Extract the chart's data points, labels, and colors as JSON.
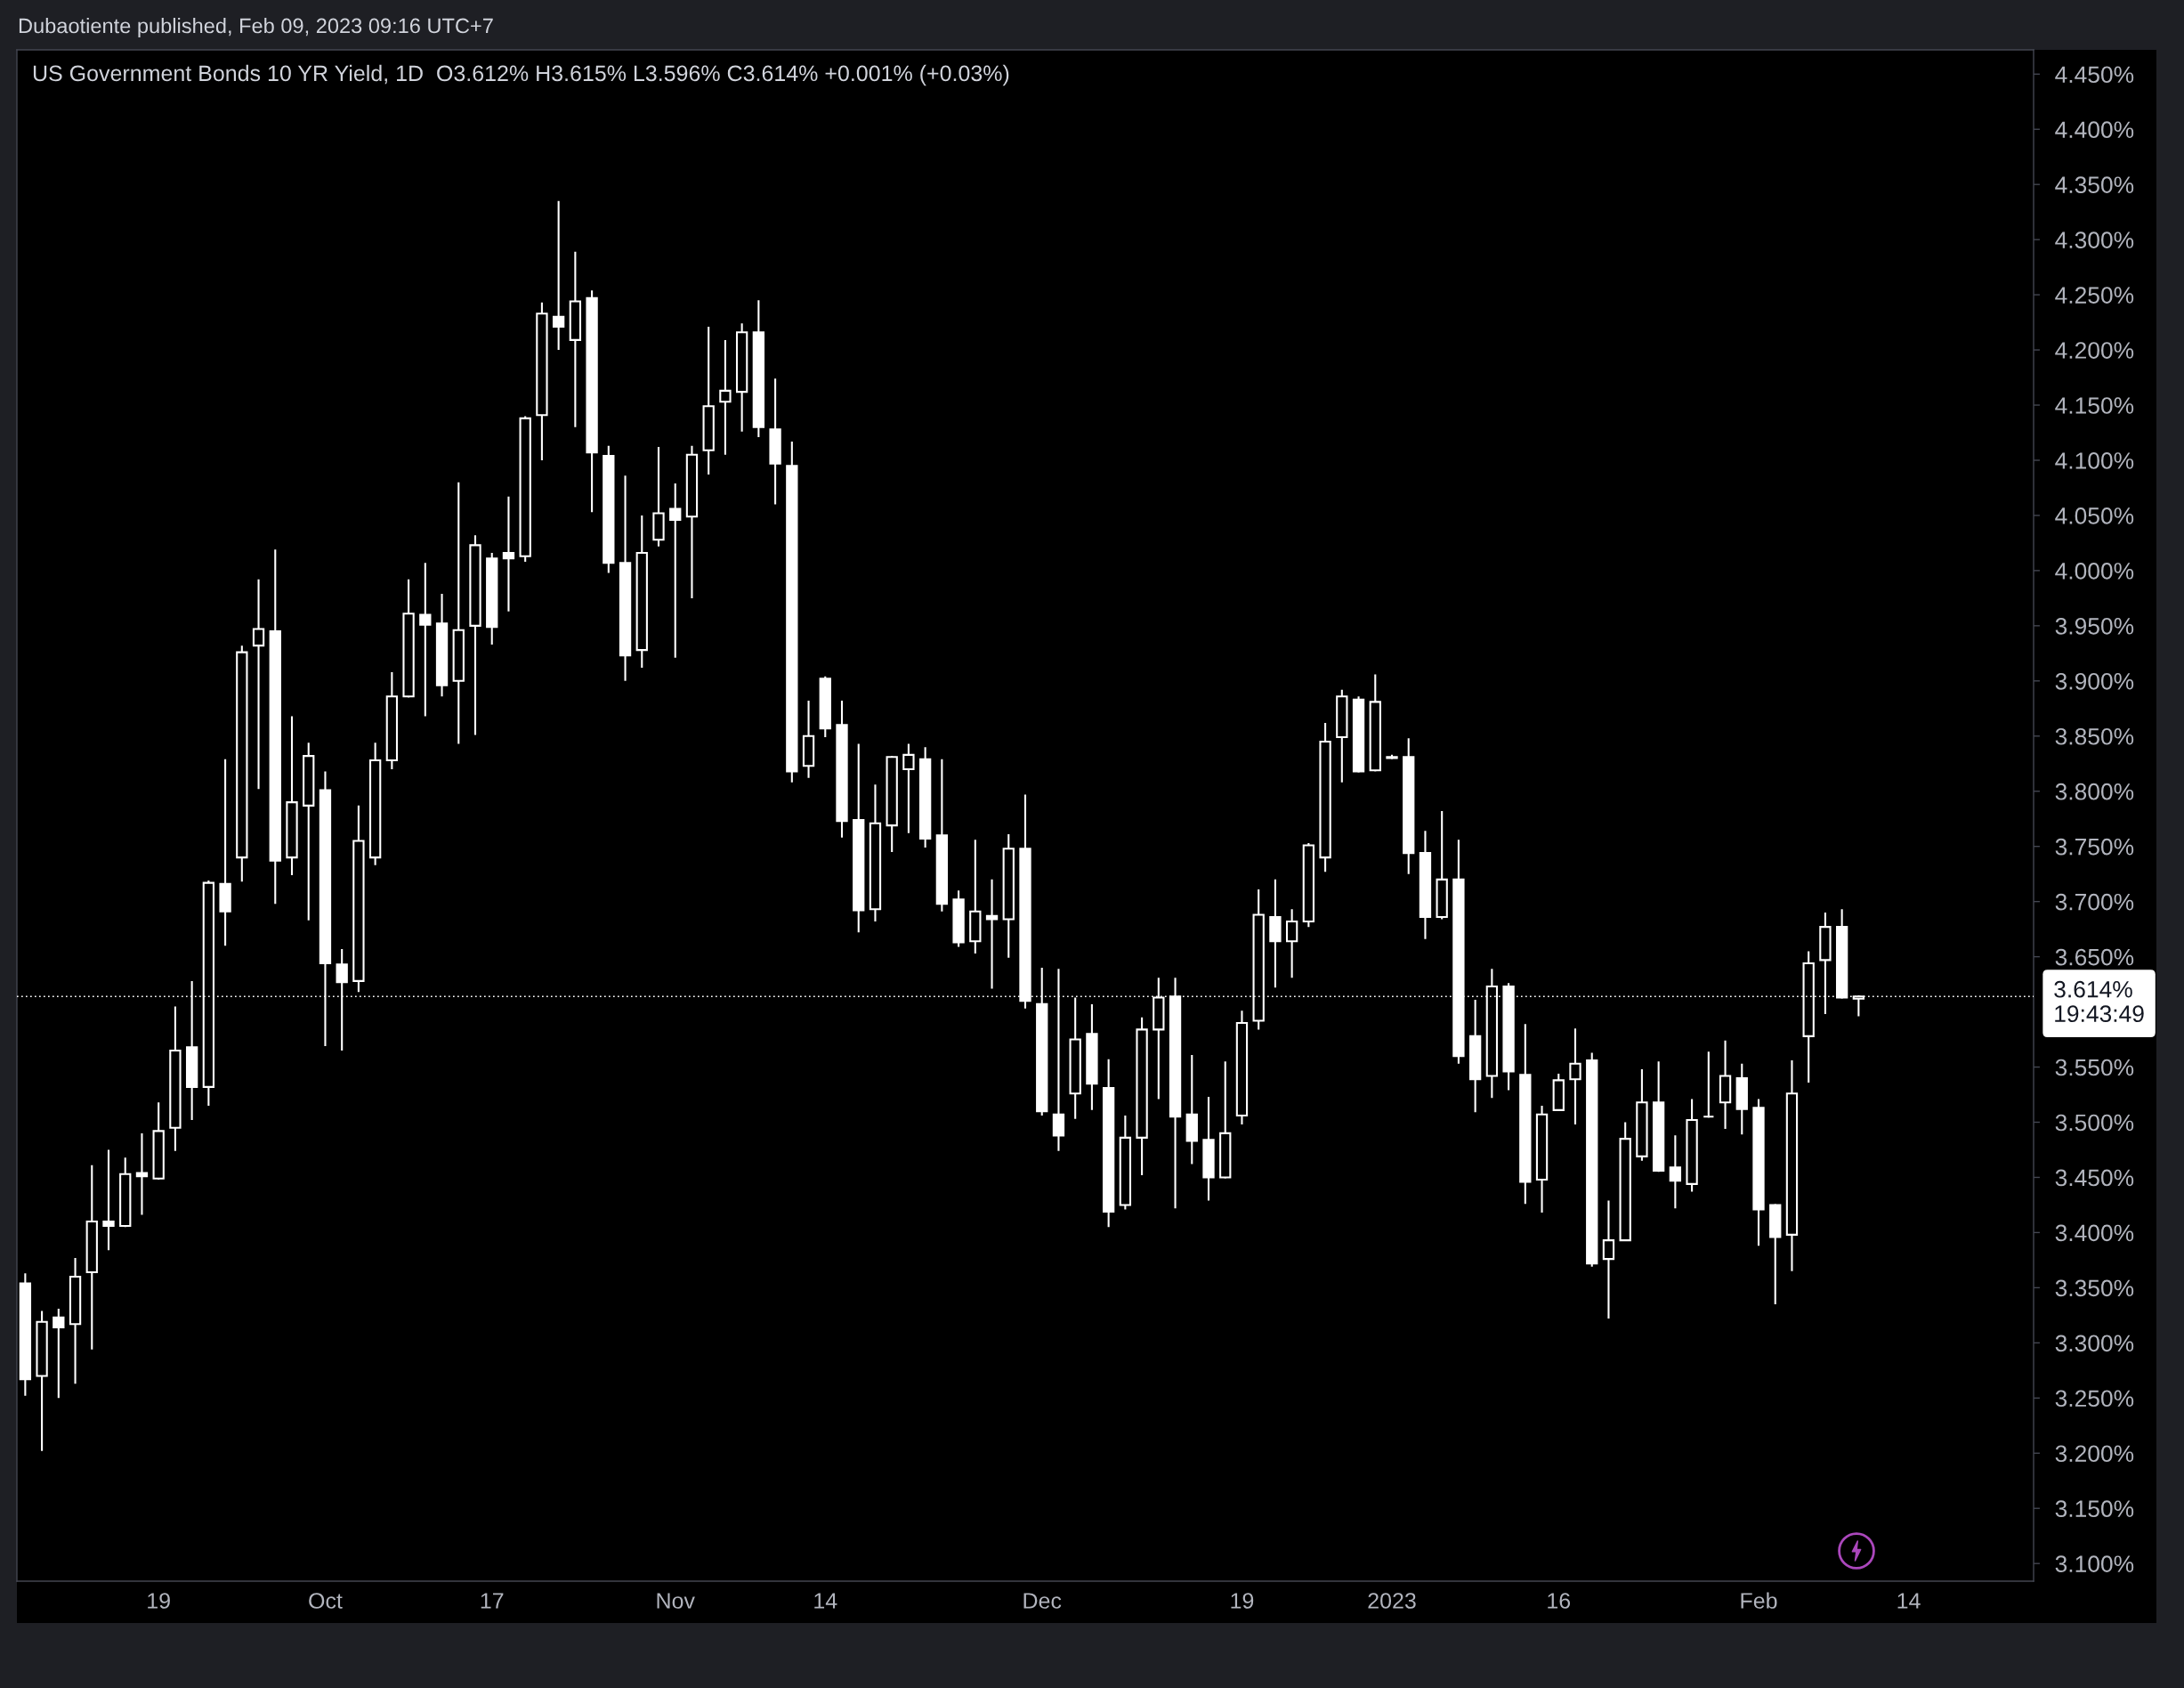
{
  "chart_data": {
    "type": "candlestick",
    "title": "US Government Bonds 10 YR Yield, 1D",
    "subtitle": "O3.612% H3.615% L3.596% C3.614% +0.001% (+0.03%)",
    "annotations": [
      "Dubaotiente published, Feb 09, 2023 09:16 UTC+7"
    ],
    "color": "#ffffff",
    "categories": [
      null,
      null,
      null,
      null,
      null,
      null,
      null,
      null,
      "19",
      null,
      null,
      null,
      null,
      null,
      null,
      null,
      null,
      null,
      "Oct",
      null,
      null,
      null,
      null,
      null,
      null,
      null,
      null,
      null,
      "17",
      null,
      null,
      null,
      null,
      null,
      null,
      null,
      null,
      null,
      null,
      "Nov",
      null,
      null,
      null,
      null,
      null,
      null,
      null,
      null,
      "14",
      null,
      null,
      null,
      null,
      null,
      null,
      null,
      null,
      null,
      null,
      null,
      null,
      "Dec",
      null,
      null,
      null,
      null,
      null,
      null,
      null,
      null,
      null,
      null,
      null,
      "19",
      null,
      null,
      null,
      null,
      null,
      null,
      null,
      null,
      "2023",
      null,
      null,
      null,
      null,
      null,
      null,
      null,
      null,
      null,
      "16",
      null,
      null,
      null,
      null,
      null,
      null,
      null,
      null,
      null,
      null,
      null,
      "Feb",
      null,
      null,
      null,
      null,
      null,
      null,
      null,
      null,
      "14",
      null,
      null,
      null,
      null,
      null,
      null,
      null
    ],
    "ohlc": [
      [
        3.354,
        3.363,
        3.252,
        3.267
      ],
      [
        3.27,
        3.329,
        3.202,
        3.319
      ],
      [
        3.323,
        3.331,
        3.25,
        3.314
      ],
      [
        3.317,
        3.377,
        3.263,
        3.36
      ],
      [
        3.364,
        3.461,
        3.294,
        3.41
      ],
      [
        3.41,
        3.475,
        3.384,
        3.406
      ],
      [
        3.406,
        3.468,
        3.405,
        3.453
      ],
      [
        3.454,
        3.49,
        3.416,
        3.451
      ],
      [
        3.449,
        3.518,
        3.448,
        3.492
      ],
      [
        3.495,
        3.605,
        3.474,
        3.565
      ],
      [
        3.568,
        3.628,
        3.502,
        3.532
      ],
      [
        3.532,
        3.719,
        3.515,
        3.717
      ],
      [
        3.716,
        3.829,
        3.66,
        3.691
      ],
      [
        3.74,
        3.932,
        3.718,
        3.926
      ],
      [
        3.932,
        3.992,
        3.802,
        3.947
      ],
      [
        3.945,
        4.019,
        3.698,
        3.737
      ],
      [
        3.74,
        3.868,
        3.724,
        3.79
      ],
      [
        3.787,
        3.844,
        3.683,
        3.832
      ],
      [
        3.801,
        3.818,
        3.569,
        3.644
      ],
      [
        3.643,
        3.657,
        3.565,
        3.627
      ],
      [
        3.628,
        3.787,
        3.618,
        3.755
      ],
      [
        3.74,
        3.844,
        3.733,
        3.828
      ],
      [
        3.828,
        3.908,
        3.82,
        3.886
      ],
      [
        3.886,
        3.992,
        3.885,
        3.961
      ],
      [
        3.96,
        4.007,
        3.868,
        3.951
      ],
      [
        3.952,
        3.979,
        3.886,
        3.896
      ],
      [
        3.9,
        4.08,
        3.843,
        3.946
      ],
      [
        3.95,
        4.032,
        3.851,
        4.023
      ],
      [
        4.011,
        4.016,
        3.933,
        3.949
      ],
      [
        4.016,
        4.067,
        3.963,
        4.011
      ],
      [
        4.013,
        4.14,
        4.008,
        4.138
      ],
      [
        4.141,
        4.243,
        4.1,
        4.233
      ],
      [
        4.23,
        4.335,
        4.2,
        4.221
      ],
      [
        4.209,
        4.289,
        4.13,
        4.244
      ],
      [
        4.247,
        4.254,
        4.053,
        4.107
      ],
      [
        4.104,
        4.113,
        3.998,
        4.007
      ],
      [
        4.007,
        4.086,
        3.9,
        3.923
      ],
      [
        3.928,
        4.05,
        3.912,
        4.016
      ],
      [
        4.028,
        4.112,
        4.022,
        4.052
      ],
      [
        4.056,
        4.079,
        3.921,
        4.046
      ],
      [
        4.049,
        4.113,
        3.975,
        4.105
      ],
      [
        4.109,
        4.221,
        4.087,
        4.149
      ],
      [
        4.153,
        4.209,
        4.105,
        4.163
      ],
      [
        4.162,
        4.224,
        4.126,
        4.216
      ],
      [
        4.216,
        4.245,
        4.121,
        4.13
      ],
      [
        4.128,
        4.174,
        4.06,
        4.097
      ],
      [
        4.095,
        4.117,
        3.808,
        3.818
      ],
      [
        3.823,
        3.882,
        3.812,
        3.85
      ],
      [
        3.902,
        3.904,
        3.849,
        3.857
      ],
      [
        3.86,
        3.882,
        3.758,
        3.773
      ],
      [
        3.774,
        3.843,
        3.672,
        3.692
      ],
      [
        3.693,
        3.806,
        3.682,
        3.771
      ],
      [
        3.769,
        3.832,
        3.745,
        3.831
      ],
      [
        3.82,
        3.843,
        3.762,
        3.833
      ],
      [
        3.829,
        3.84,
        3.749,
        3.757
      ],
      [
        3.76,
        3.829,
        3.691,
        3.698
      ],
      [
        3.702,
        3.71,
        3.659,
        3.663
      ],
      [
        3.664,
        3.756,
        3.653,
        3.691
      ],
      [
        3.687,
        3.72,
        3.621,
        3.684
      ],
      [
        3.684,
        3.761,
        3.649,
        3.748
      ],
      [
        3.748,
        3.797,
        3.603,
        3.61
      ],
      [
        3.607,
        3.64,
        3.506,
        3.51
      ],
      [
        3.507,
        3.639,
        3.474,
        3.488
      ],
      [
        3.526,
        3.613,
        3.503,
        3.575
      ],
      [
        3.58,
        3.607,
        3.511,
        3.535
      ],
      [
        3.531,
        3.557,
        3.405,
        3.419
      ],
      [
        3.425,
        3.506,
        3.421,
        3.486
      ],
      [
        3.486,
        3.595,
        3.452,
        3.584
      ],
      [
        3.584,
        3.631,
        3.521,
        3.613
      ],
      [
        3.614,
        3.631,
        3.422,
        3.505
      ],
      [
        3.507,
        3.561,
        3.462,
        3.483
      ],
      [
        3.484,
        3.523,
        3.429,
        3.45
      ],
      [
        3.45,
        3.555,
        3.449,
        3.49
      ],
      [
        3.506,
        3.601,
        3.498,
        3.59
      ],
      [
        3.592,
        3.711,
        3.584,
        3.688
      ],
      [
        3.686,
        3.72,
        3.622,
        3.664
      ],
      [
        3.664,
        3.693,
        3.631,
        3.682
      ],
      [
        3.682,
        3.753,
        3.677,
        3.751
      ],
      [
        3.74,
        3.862,
        3.727,
        3.845
      ],
      [
        3.849,
        3.892,
        3.808,
        3.886
      ],
      [
        3.883,
        3.886,
        3.817,
        3.818
      ],
      [
        3.819,
        3.906,
        3.818,
        3.881
      ],
      [
        3.831,
        3.833,
        3.829,
        3.83
      ],
      [
        3.831,
        3.848,
        3.725,
        3.744
      ],
      [
        3.744,
        3.764,
        3.666,
        3.686
      ],
      [
        3.686,
        3.782,
        3.684,
        3.72
      ],
      [
        3.72,
        3.756,
        3.553,
        3.56
      ],
      [
        3.578,
        3.611,
        3.509,
        3.539
      ],
      [
        3.542,
        3.639,
        3.522,
        3.623
      ],
      [
        3.623,
        3.626,
        3.529,
        3.546
      ],
      [
        3.543,
        3.589,
        3.426,
        3.446
      ],
      [
        3.448,
        3.515,
        3.418,
        3.507
      ],
      [
        3.511,
        3.544,
        3.51,
        3.538
      ],
      [
        3.539,
        3.585,
        3.498,
        3.553
      ],
      [
        3.556,
        3.563,
        3.369,
        3.372
      ],
      [
        3.376,
        3.429,
        3.322,
        3.393
      ],
      [
        3.393,
        3.5,
        3.392,
        3.485
      ],
      [
        3.469,
        3.548,
        3.465,
        3.518
      ],
      [
        3.518,
        3.555,
        3.455,
        3.456
      ],
      [
        3.459,
        3.488,
        3.422,
        3.447
      ],
      [
        3.444,
        3.521,
        3.437,
        3.502
      ],
      [
        3.505,
        3.564,
        3.504,
        3.505
      ],
      [
        3.518,
        3.574,
        3.494,
        3.542
      ],
      [
        3.54,
        3.553,
        3.489,
        3.512
      ],
      [
        3.513,
        3.521,
        3.388,
        3.421
      ],
      [
        3.425,
        3.426,
        3.335,
        3.396
      ],
      [
        3.398,
        3.556,
        3.365,
        3.526
      ],
      [
        3.578,
        3.655,
        3.536,
        3.644
      ],
      [
        3.647,
        3.69,
        3.598,
        3.677
      ],
      [
        3.677,
        3.693,
        3.612,
        3.613
      ],
      [
        3.612,
        3.615,
        3.596,
        3.614
      ],
      null,
      null,
      null,
      null,
      null,
      null,
      null,
      null,
      null,
      null
    ],
    "ylim": [
      3.084,
      4.472
    ],
    "yticks": [
      {
        "value": 3.1,
        "label": "3.100%"
      },
      {
        "value": 3.15,
        "label": "3.150%"
      },
      {
        "value": 3.2,
        "label": "3.200%"
      },
      {
        "value": 3.25,
        "label": "3.250%"
      },
      {
        "value": 3.3,
        "label": "3.300%"
      },
      {
        "value": 3.35,
        "label": "3.350%"
      },
      {
        "value": 3.4,
        "label": "3.400%"
      },
      {
        "value": 3.45,
        "label": "3.450%"
      },
      {
        "value": 3.5,
        "label": "3.500%"
      },
      {
        "value": 3.55,
        "label": "3.550%"
      },
      {
        "value": 3.65,
        "label": "3.650%"
      },
      {
        "value": 3.7,
        "label": "3.700%"
      },
      {
        "value": 3.75,
        "label": "3.750%"
      },
      {
        "value": 3.8,
        "label": "3.800%"
      },
      {
        "value": 3.85,
        "label": "3.850%"
      },
      {
        "value": 3.9,
        "label": "3.900%"
      },
      {
        "value": 3.95,
        "label": "3.950%"
      },
      {
        "value": 4.0,
        "label": "4.000%"
      },
      {
        "value": 4.05,
        "label": "4.050%"
      },
      {
        "value": 4.1,
        "label": "4.100%"
      },
      {
        "value": 4.15,
        "label": "4.150%"
      },
      {
        "value": 4.2,
        "label": "4.200%"
      },
      {
        "value": 4.25,
        "label": "4.250%"
      },
      {
        "value": 4.3,
        "label": "4.300%"
      },
      {
        "value": 4.35,
        "label": "4.350%"
      },
      {
        "value": 4.4,
        "label": "4.400%"
      },
      {
        "value": 4.45,
        "label": "4.450%"
      }
    ],
    "ref_lines": [
      {
        "axis": "y",
        "value": 3.614,
        "label": "3.614%\n19:43:49",
        "color": "#ffffff",
        "line_style": "dotted"
      }
    ]
  }
}
